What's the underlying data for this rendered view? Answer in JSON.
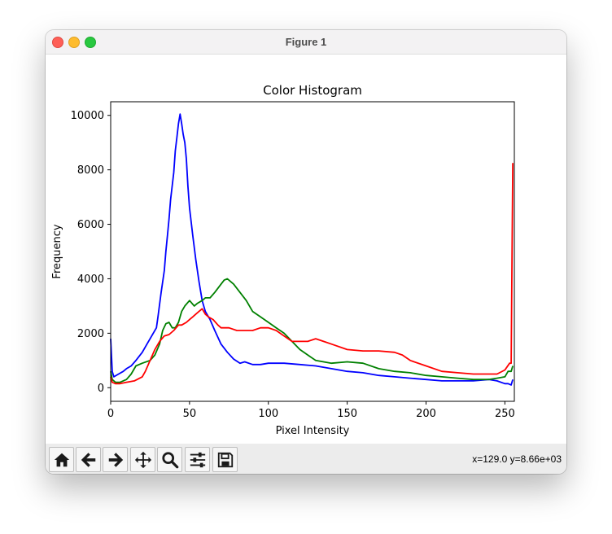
{
  "window": {
    "title": "Figure 1"
  },
  "toolbar": {
    "buttons": [
      {
        "name": "home-button",
        "icon": "home-icon"
      },
      {
        "name": "back-button",
        "icon": "arrow-left-icon"
      },
      {
        "name": "forward-button",
        "icon": "arrow-right-icon"
      },
      {
        "name": "pan-button",
        "icon": "move-icon"
      },
      {
        "name": "zoom-button",
        "icon": "magnifier-icon"
      },
      {
        "name": "configure-subplots-button",
        "icon": "sliders-icon"
      },
      {
        "name": "save-button",
        "icon": "floppy-disk-icon"
      }
    ],
    "coordinates": "x=129.0 y=8.66e+03"
  },
  "chart_data": {
    "type": "line",
    "title": "Color Histogram",
    "xlabel": "Pixel Intensity",
    "ylabel": "Frequency",
    "xlim": [
      0,
      256
    ],
    "ylim": [
      -500,
      10500
    ],
    "xticks": [
      0,
      50,
      100,
      150,
      200,
      250
    ],
    "yticks": [
      0,
      2000,
      4000,
      6000,
      8000,
      10000
    ],
    "grid": false,
    "series": [
      {
        "color": "#0000ff",
        "x": [
          0,
          1,
          2,
          5,
          8,
          10,
          13,
          16,
          20,
          23,
          26,
          29,
          30,
          32,
          34,
          35,
          36,
          37,
          38,
          40,
          41,
          42,
          43,
          44,
          45,
          46,
          47,
          48,
          49,
          50,
          52,
          54,
          56,
          58,
          60,
          63,
          66,
          70,
          74,
          78,
          82,
          85,
          90,
          95,
          100,
          110,
          120,
          130,
          140,
          150,
          160,
          170,
          180,
          190,
          200,
          210,
          220,
          230,
          240,
          245,
          250,
          252,
          254,
          255
        ],
        "values": [
          1800,
          600,
          400,
          500,
          600,
          700,
          800,
          1000,
          1300,
          1600,
          1900,
          2200,
          2600,
          3500,
          4300,
          5000,
          5600,
          6200,
          6900,
          7900,
          8700,
          9200,
          9700,
          10050,
          9700,
          9300,
          9000,
          8400,
          7400,
          6600,
          5600,
          4700,
          3900,
          3200,
          2800,
          2500,
          2100,
          1600,
          1300,
          1050,
          900,
          950,
          850,
          850,
          900,
          900,
          850,
          800,
          700,
          600,
          550,
          450,
          400,
          350,
          300,
          250,
          250,
          250,
          300,
          250,
          150,
          150,
          100,
          300
        ]
      },
      {
        "color": "#008000",
        "x": [
          0,
          1,
          3,
          6,
          10,
          13,
          16,
          20,
          25,
          28,
          31,
          33,
          35,
          37,
          39,
          41,
          43,
          45,
          47,
          50,
          53,
          55,
          58,
          60,
          63,
          66,
          70,
          72,
          74,
          76,
          78,
          82,
          86,
          90,
          95,
          100,
          105,
          110,
          115,
          120,
          125,
          130,
          140,
          150,
          160,
          170,
          180,
          190,
          200,
          210,
          220,
          230,
          240,
          245,
          250,
          252,
          254,
          255
        ],
        "values": [
          600,
          300,
          200,
          200,
          300,
          500,
          800,
          900,
          1000,
          1200,
          1600,
          2100,
          2350,
          2400,
          2200,
          2200,
          2400,
          2800,
          3000,
          3200,
          3000,
          3100,
          3200,
          3300,
          3300,
          3500,
          3800,
          3950,
          4000,
          3900,
          3800,
          3500,
          3200,
          2800,
          2600,
          2400,
          2200,
          2000,
          1700,
          1400,
          1200,
          1000,
          900,
          950,
          900,
          700,
          600,
          550,
          450,
          400,
          350,
          300,
          300,
          350,
          400,
          600,
          600,
          800
        ]
      },
      {
        "color": "#ff0000",
        "x": [
          0,
          1,
          3,
          6,
          10,
          15,
          20,
          22,
          25,
          28,
          31,
          34,
          37,
          40,
          43,
          45,
          48,
          50,
          52,
          54,
          56,
          58,
          60,
          62,
          65,
          68,
          70,
          75,
          80,
          85,
          90,
          95,
          100,
          105,
          110,
          115,
          120,
          125,
          130,
          135,
          140,
          150,
          160,
          170,
          180,
          185,
          190,
          200,
          210,
          220,
          230,
          240,
          245,
          250,
          253,
          254,
          255
        ],
        "values": [
          400,
          200,
          150,
          150,
          200,
          250,
          400,
          600,
          1000,
          1400,
          1700,
          1900,
          1950,
          2100,
          2300,
          2300,
          2400,
          2500,
          2600,
          2700,
          2800,
          2900,
          2700,
          2600,
          2500,
          2300,
          2200,
          2200,
          2100,
          2100,
          2100,
          2200,
          2200,
          2100,
          1900,
          1700,
          1700,
          1700,
          1800,
          1700,
          1600,
          1400,
          1350,
          1350,
          1300,
          1200,
          1000,
          800,
          600,
          550,
          500,
          500,
          500,
          650,
          900,
          900,
          8250
        ]
      }
    ]
  }
}
